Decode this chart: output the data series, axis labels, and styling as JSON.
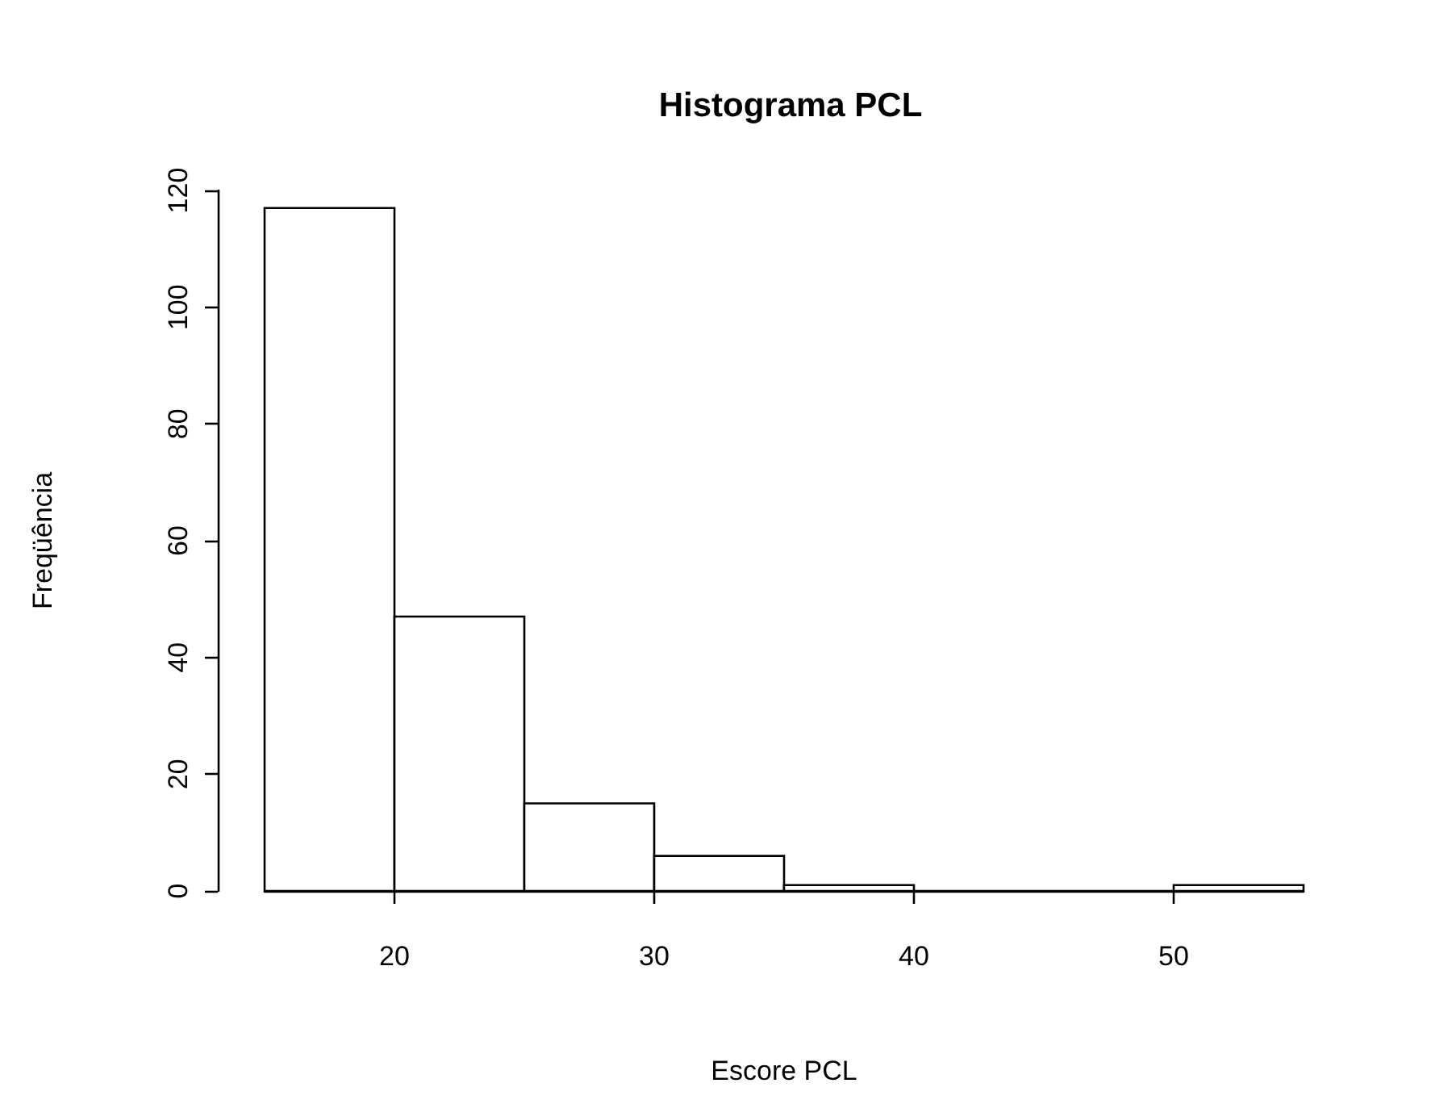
{
  "chart_data": {
    "type": "histogram",
    "title": "Histograma PCL",
    "xlabel": "Escore PCL",
    "ylabel": "Freqüência",
    "bins": [
      15,
      20,
      25,
      30,
      35,
      40,
      45,
      50,
      55
    ],
    "values": [
      117,
      47,
      15,
      6,
      1,
      0,
      0,
      1
    ],
    "color": "#ffffff",
    "xlim": [
      15,
      55
    ],
    "xticks": [
      20,
      30,
      40,
      50
    ],
    "ylim": [
      0,
      120
    ],
    "yticks": [
      0,
      20,
      40,
      60,
      80,
      100,
      120
    ],
    "grid": false
  }
}
